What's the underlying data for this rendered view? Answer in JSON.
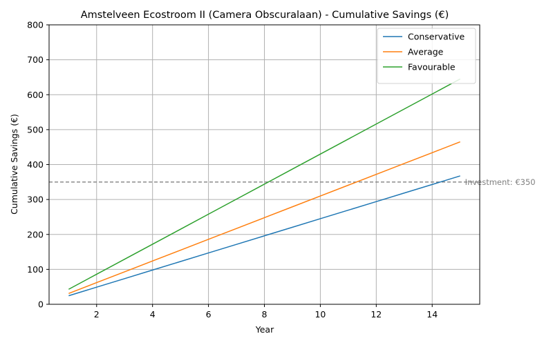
{
  "chart_data": {
    "type": "line",
    "title": "Amstelveen Ecostroom II (Camera Obscuralaan) - Cumulative Savings (€)",
    "xlabel": "Year",
    "ylabel": "Cumulative Savings (€)",
    "xlim": [
      0.3,
      15.7
    ],
    "ylim": [
      0,
      800
    ],
    "xticks": [
      2,
      4,
      6,
      8,
      10,
      12,
      14
    ],
    "yticks": [
      0,
      100,
      200,
      300,
      400,
      500,
      600,
      700,
      800
    ],
    "grid": true,
    "legend_position": "top-right",
    "x": [
      1,
      2,
      3,
      4,
      5,
      6,
      7,
      8,
      9,
      10,
      11,
      12,
      13,
      14,
      15
    ],
    "series": [
      {
        "name": "Conservative",
        "color": "#1f77b4",
        "values": [
          24.5,
          49,
          73.5,
          98,
          122.5,
          147,
          171.5,
          196,
          220.5,
          245,
          269.5,
          294,
          318.5,
          343,
          367.5
        ]
      },
      {
        "name": "Average",
        "color": "#ff7f0e",
        "values": [
          31,
          62,
          93,
          124,
          155,
          186,
          217,
          248,
          279,
          310,
          341,
          372,
          403,
          434,
          465
        ]
      },
      {
        "name": "Favourable",
        "color": "#2ca02c",
        "values": [
          43,
          86,
          129,
          172,
          215,
          258,
          301,
          344,
          387,
          430,
          473,
          516,
          559,
          602,
          645
        ]
      }
    ],
    "reference_line": {
      "y": 350,
      "label": "Investment: €350",
      "color": "#808080",
      "style": "dashed"
    }
  }
}
